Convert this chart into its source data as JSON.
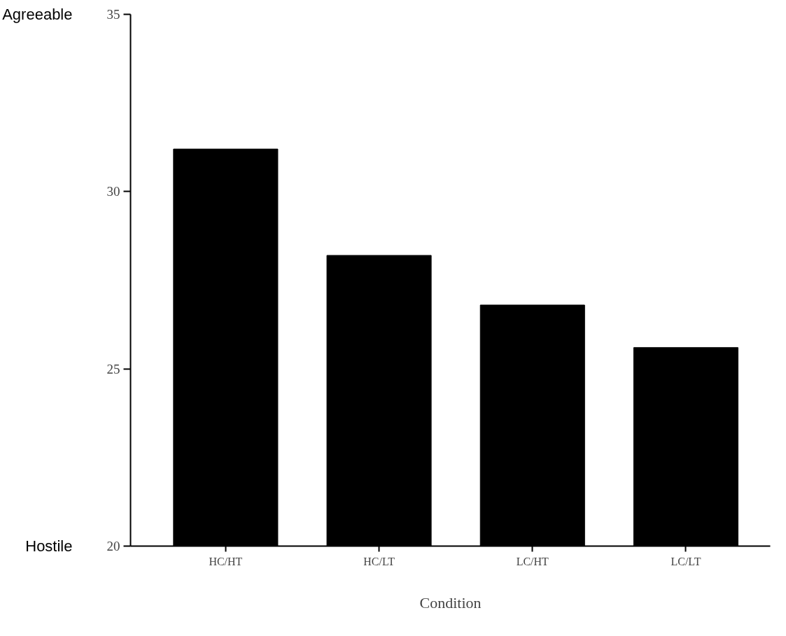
{
  "chart_data": {
    "type": "bar",
    "xlabel": "Condition",
    "categories": [
      "HC/HT",
      "HC/LT",
      "LC/HT",
      "LC/LT"
    ],
    "values": [
      31.2,
      28.2,
      26.8,
      25.6
    ],
    "color": "#000000",
    "ylim": [
      20,
      35
    ],
    "yticks": [
      20,
      25,
      30,
      35
    ],
    "annotations": [
      "Agreeable",
      "Hostile"
    ]
  }
}
